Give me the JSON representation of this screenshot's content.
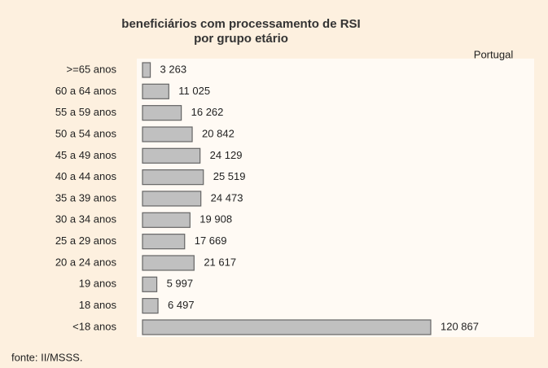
{
  "chart_data": {
    "type": "barh",
    "title": [
      "beneficiários com processamento de RSI",
      "por grupo etário"
    ],
    "subtitle": "Portugal",
    "source": "fonte: II/MSSS.",
    "categories": [
      ">=65 anos",
      "60 a 64 anos",
      "55 a 59 anos",
      "50 a 54 anos",
      "45 a 49 anos",
      "40 a 44 anos",
      "35 a 39 anos",
      "30 a 34 anos",
      "25 a 29 anos",
      "20 a 24 anos",
      "19 anos",
      "18 anos",
      "<18 anos"
    ],
    "values": [
      3263,
      11025,
      16262,
      20842,
      24129,
      25519,
      24473,
      19908,
      17669,
      21617,
      5997,
      6497,
      120867
    ],
    "value_labels": [
      "3 263",
      "11 025",
      "16 262",
      "20 842",
      "24 129",
      "25 519",
      "24 473",
      "19 908",
      "17 669",
      "21 617",
      "5 997",
      "6 497",
      "120 867"
    ],
    "color": "#c0c0c0"
  }
}
